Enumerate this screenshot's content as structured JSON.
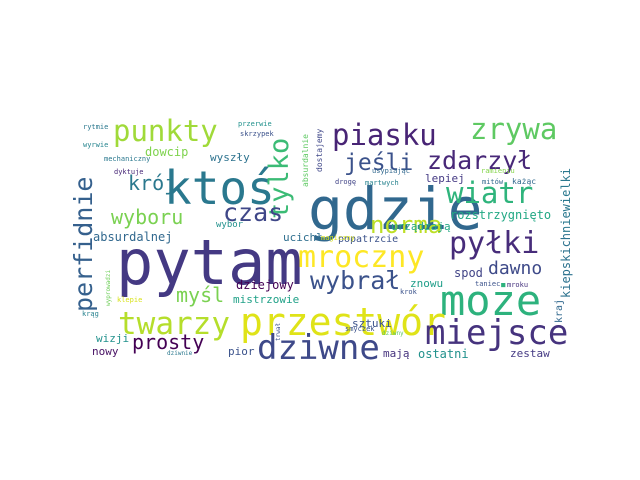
{
  "words": [
    {
      "text": "pytam",
      "color": "#443983"
    },
    {
      "text": "gdzie",
      "color": "#31688e"
    },
    {
      "text": "ktoś",
      "color": "#2a788e"
    },
    {
      "text": "może",
      "color": "#2db27d"
    },
    {
      "text": "przestwór",
      "color": "#dfe318"
    },
    {
      "text": "dziwne",
      "color": "#3e4989"
    },
    {
      "text": "miejsce",
      "color": "#46337e"
    },
    {
      "text": "twarzy",
      "color": "#b5de2b"
    },
    {
      "text": "mroczny",
      "color": "#fde725"
    },
    {
      "text": "pyłki",
      "color": "#472c7a"
    },
    {
      "text": "punkty",
      "color": "#a0da39"
    },
    {
      "text": "zrywa",
      "color": "#5ec962"
    },
    {
      "text": "piasku",
      "color": "#482475"
    },
    {
      "text": "wiatr",
      "color": "#2fb47c"
    },
    {
      "text": "tylko",
      "color": "#3bbb75"
    },
    {
      "text": "zdarzył",
      "color": "#482878"
    },
    {
      "text": "czas",
      "color": "#3f4788"
    },
    {
      "text": "wybrał",
      "color": "#3b528b"
    },
    {
      "text": "perfidnie",
      "color": "#35608d"
    },
    {
      "text": "norma",
      "color": "#bddf26"
    },
    {
      "text": "jeśli",
      "color": "#3b528b"
    },
    {
      "text": "wyboru",
      "color": "#7ad151"
    },
    {
      "text": "myśl",
      "color": "#7ad151"
    },
    {
      "text": "krój",
      "color": "#2a788e"
    },
    {
      "text": "prosty",
      "color": "#440154"
    },
    {
      "text": "dawno",
      "color": "#3e4a89"
    },
    {
      "text": "rozstrzygnięto",
      "color": "#22a884"
    },
    {
      "text": "niewielki",
      "color": "#2a788e"
    },
    {
      "text": "kiepskich",
      "color": "#2c728e"
    },
    {
      "text": "spod",
      "color": "#414487"
    },
    {
      "text": "dziejowy",
      "color": "#440154"
    },
    {
      "text": "dowcip",
      "color": "#7fd34e"
    },
    {
      "text": "absurdalnej",
      "color": "#31688e"
    },
    {
      "text": "wyszły",
      "color": "#2c728e"
    },
    {
      "text": "ucichł",
      "color": "#2e6e8e"
    },
    {
      "text": "urządzają",
      "color": "#22a884"
    },
    {
      "text": "lepiej",
      "color": "#443983"
    },
    {
      "text": "popatrzcie",
      "color": "#3b528b"
    },
    {
      "text": "znowu",
      "color": "#1f9e89"
    },
    {
      "text": "mistrzowie",
      "color": "#1fa187"
    },
    {
      "text": "sztuki",
      "color": "#3b528b"
    },
    {
      "text": "ostatni",
      "color": "#21918c"
    },
    {
      "text": "zestaw",
      "color": "#443983"
    },
    {
      "text": "mają",
      "color": "#46337e"
    },
    {
      "text": "pior",
      "color": "#3b528b"
    },
    {
      "text": "nowy",
      "color": "#471063"
    },
    {
      "text": "wizji",
      "color": "#21918c"
    },
    {
      "text": "kraj",
      "color": "#31688e"
    },
    {
      "text": "wybór",
      "color": "#21918c"
    },
    {
      "text": "absurdalnie",
      "color": "#5ec962"
    },
    {
      "text": "dostajemy",
      "color": "#3f4788"
    },
    {
      "text": "mechaniczny",
      "color": "#2a788e"
    },
    {
      "text": "skrzypek",
      "color": "#3b528b"
    },
    {
      "text": "rytmie",
      "color": "#2a788e"
    },
    {
      "text": "przerwie",
      "color": "#21918c"
    },
    {
      "text": "wyrwie",
      "color": "#25848e"
    },
    {
      "text": "dyktuje",
      "color": "#482878"
    },
    {
      "text": "usypiając",
      "color": "#31688e"
    },
    {
      "text": "drogę",
      "color": "#414487"
    },
    {
      "text": "martwych",
      "color": "#26828e"
    },
    {
      "text": "ramieniu",
      "color": "#84d44b"
    },
    {
      "text": "mitów",
      "color": "#31688e"
    },
    {
      "text": "każąc",
      "color": "#31688e"
    },
    {
      "text": "taniec",
      "color": "#3b528b"
    },
    {
      "text": "mroku",
      "color": "#46337e"
    },
    {
      "text": "krok",
      "color": "#3b528b"
    },
    {
      "text": "smyczek",
      "color": "#3b528b"
    },
    {
      "text": "magiczny",
      "color": "#d8e219"
    },
    {
      "text": "klepie",
      "color": "#d8e219"
    },
    {
      "text": "wyprowadzi",
      "color": "#6ece58"
    },
    {
      "text": "krąg",
      "color": "#26828e"
    },
    {
      "text": "trwał",
      "color": "#3b528b"
    },
    {
      "text": "dziwnie",
      "color": "#2a788e"
    },
    {
      "text": "dziwny",
      "color": "#5ec962"
    }
  ]
}
